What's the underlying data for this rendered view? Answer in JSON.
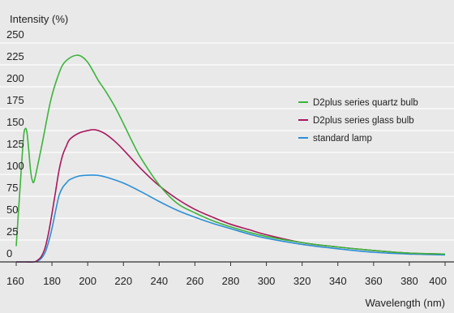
{
  "chart_data": {
    "type": "line",
    "xlabel": "Wavelength (nm)",
    "ylabel": "Intensity (%)",
    "xlim": [
      160,
      400
    ],
    "ylim": [
      0,
      250
    ],
    "x_ticks": [
      160,
      180,
      200,
      220,
      240,
      260,
      280,
      300,
      320,
      340,
      360,
      380,
      400
    ],
    "y_ticks": [
      0,
      25,
      50,
      75,
      100,
      125,
      150,
      175,
      200,
      225,
      250
    ],
    "grid": true,
    "legend_position": "right",
    "series": [
      {
        "name": "D2plus series quartz bulb",
        "color": "#3cb43c",
        "x": [
          160,
          162,
          164,
          165,
          166,
          167,
          168,
          169,
          170,
          172,
          175,
          178,
          180,
          183,
          186,
          190,
          194,
          197,
          200,
          203,
          206,
          210,
          215,
          220,
          225,
          230,
          240,
          250,
          260,
          270,
          280,
          290,
          300,
          320,
          340,
          360,
          380,
          400
        ],
        "values": [
          18,
          80,
          140,
          152,
          148,
          128,
          105,
          93,
          92,
          110,
          140,
          172,
          190,
          210,
          225,
          233,
          236,
          234,
          228,
          218,
          207,
          195,
          178,
          158,
          137,
          118,
          88,
          67,
          56,
          47,
          40,
          34,
          29,
          22,
          17,
          13,
          10,
          9
        ]
      },
      {
        "name": "D2plus series glass bulb",
        "color": "#a8185c",
        "x": [
          160,
          165,
          170,
          172,
          174,
          176,
          178,
          180,
          182,
          184,
          186,
          188,
          190,
          195,
          200,
          203,
          206,
          210,
          215,
          220,
          230,
          240,
          250,
          260,
          270,
          280,
          290,
          300,
          320,
          340,
          360,
          380,
          400
        ],
        "values": [
          0,
          0,
          0,
          2,
          6,
          15,
          32,
          55,
          80,
          105,
          122,
          132,
          140,
          147,
          150,
          151,
          150,
          146,
          138,
          128,
          106,
          87,
          72,
          60,
          51,
          43,
          37,
          31,
          22,
          17,
          13,
          10,
          9
        ]
      },
      {
        "name": "standard lamp",
        "color": "#2b8fd6",
        "x": [
          160,
          165,
          170,
          172,
          174,
          176,
          178,
          180,
          182,
          184,
          186,
          188,
          190,
          195,
          200,
          205,
          210,
          220,
          230,
          240,
          250,
          260,
          270,
          280,
          290,
          300,
          320,
          340,
          360,
          380,
          400
        ],
        "values": [
          0,
          0,
          0,
          1,
          4,
          10,
          22,
          38,
          58,
          76,
          85,
          90,
          94,
          98,
          99,
          99,
          97,
          90,
          80,
          69,
          59,
          51,
          44,
          38,
          32,
          27,
          20,
          15,
          11,
          9,
          8
        ]
      }
    ]
  }
}
